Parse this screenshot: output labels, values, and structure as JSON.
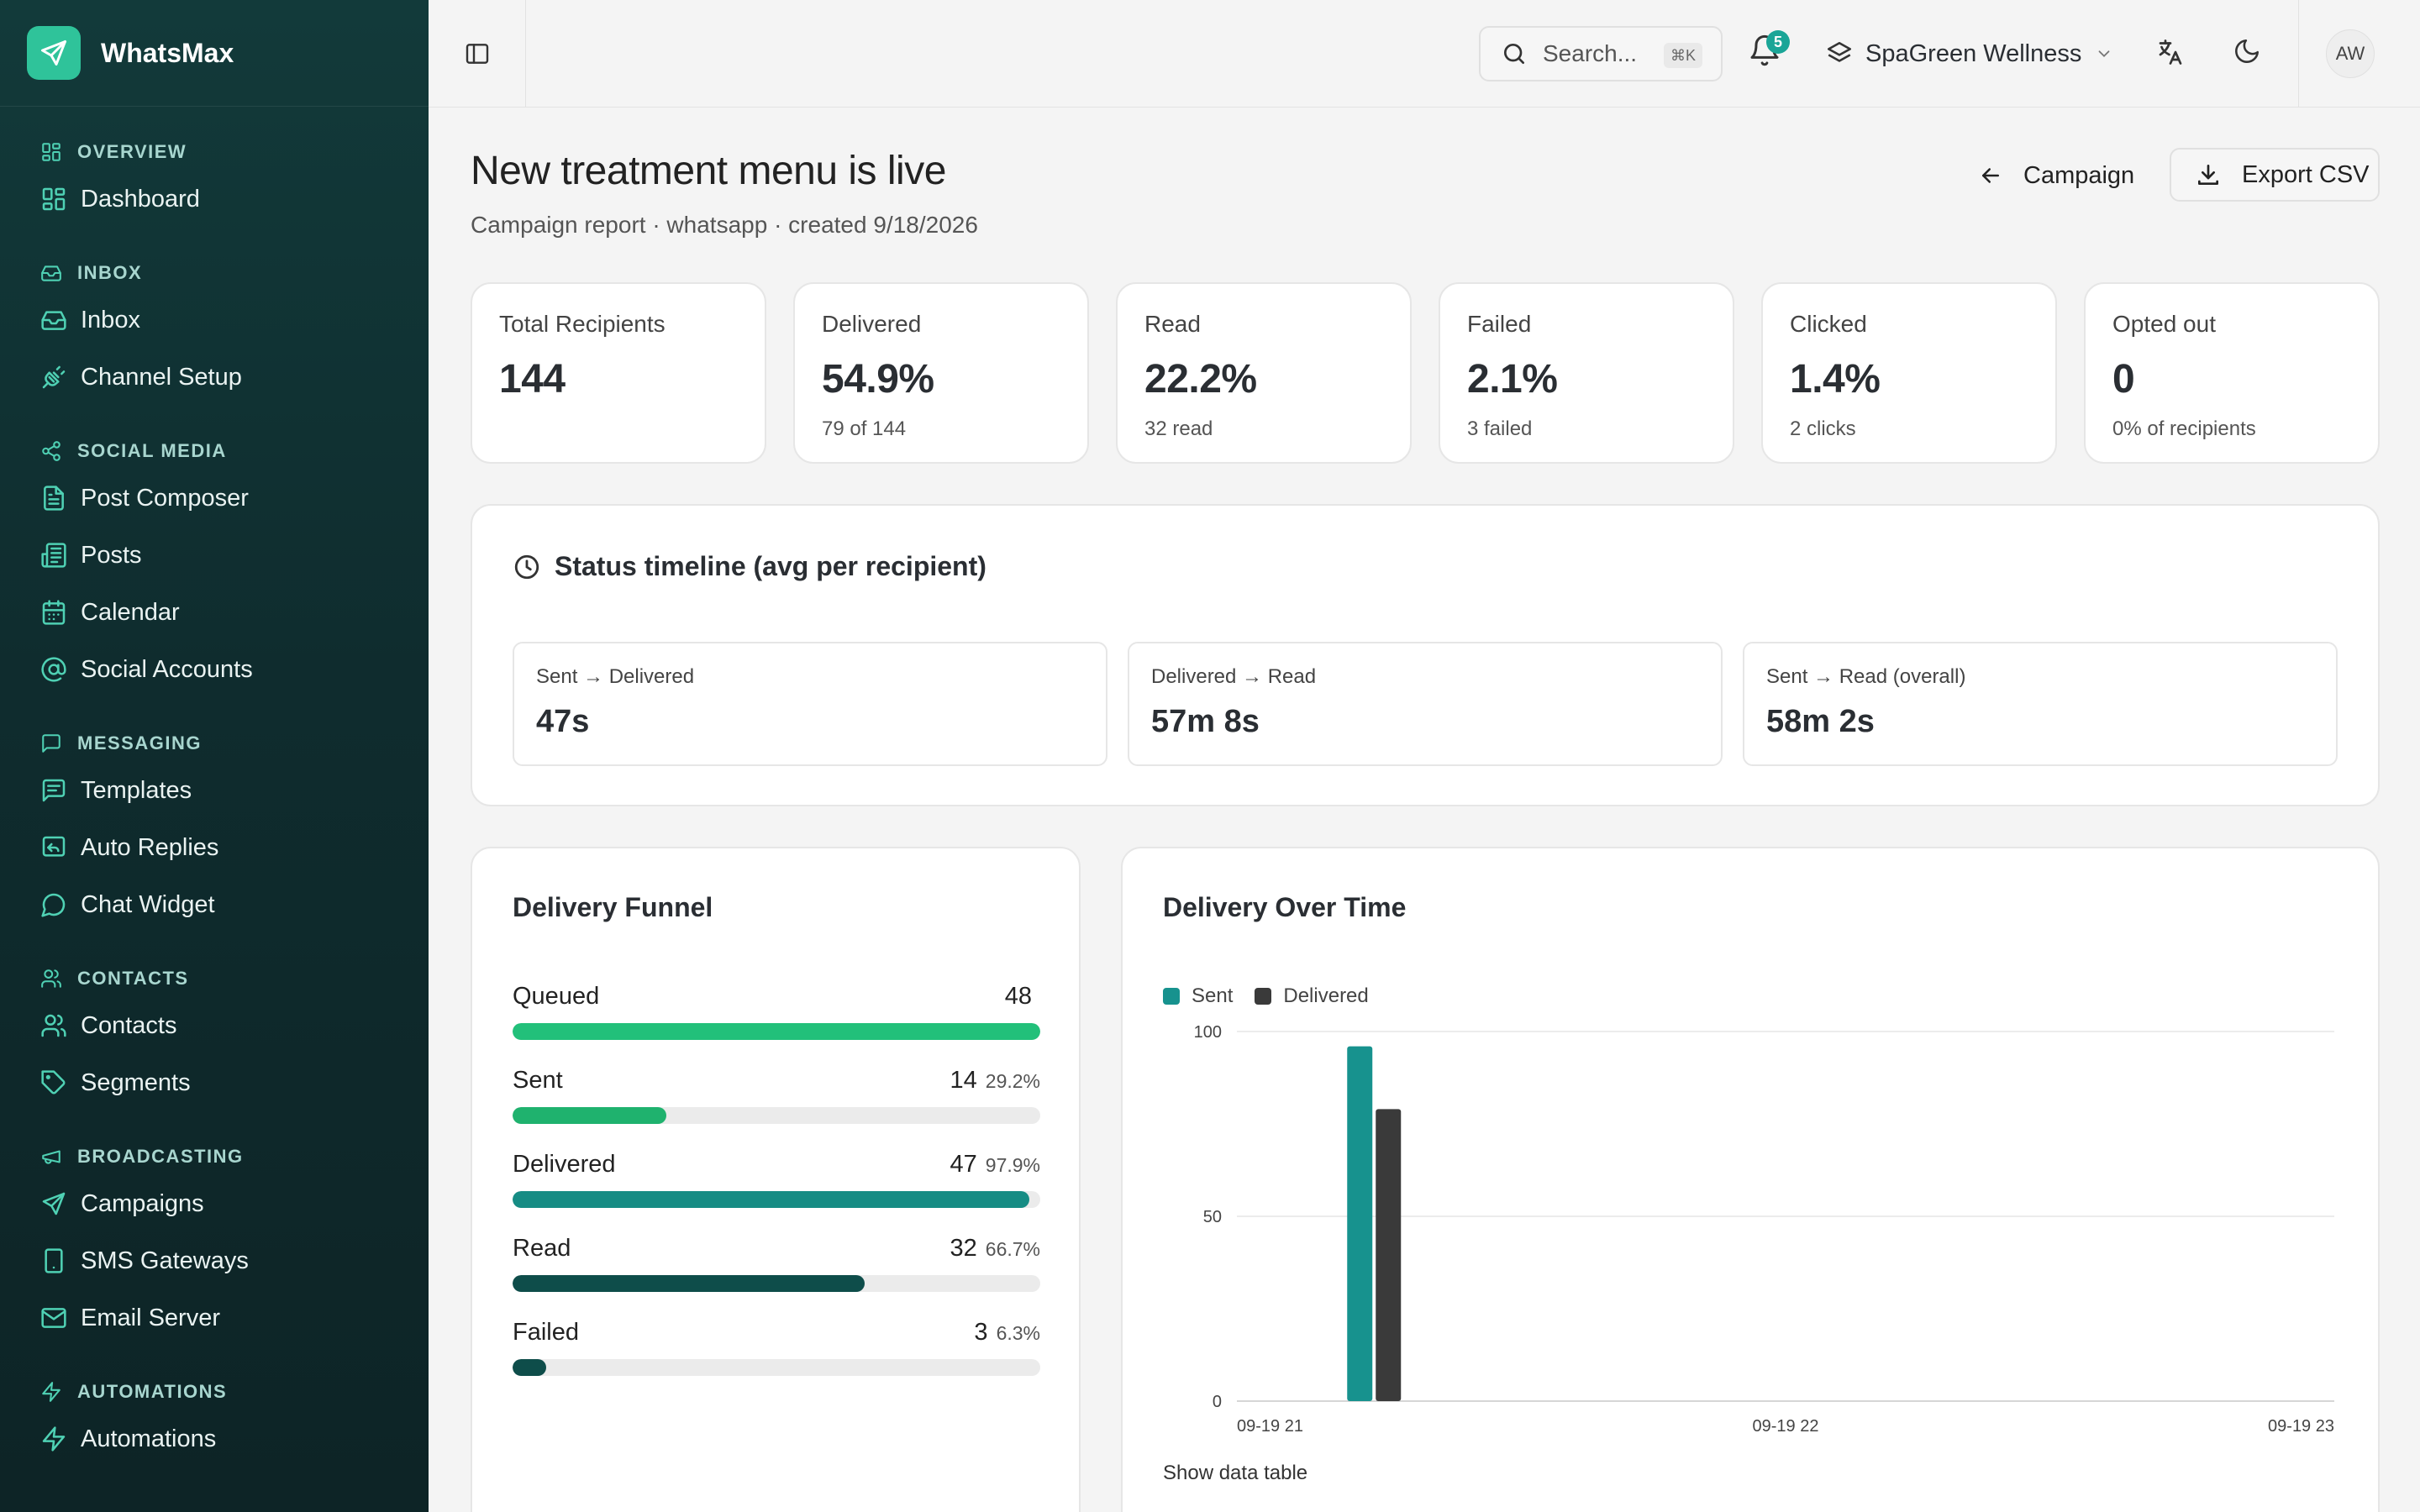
{
  "app": {
    "name": "WhatsMax"
  },
  "sidebar": {
    "sections": [
      {
        "label": "OVERVIEW",
        "icon": "layout-grid-icon",
        "items": [
          {
            "label": "Dashboard",
            "icon": "layout-grid-icon"
          }
        ]
      },
      {
        "label": "INBOX",
        "icon": "inbox-icon",
        "items": [
          {
            "label": "Inbox",
            "icon": "inbox-icon"
          },
          {
            "label": "Channel Setup",
            "icon": "plug-icon"
          }
        ]
      },
      {
        "label": "SOCIAL MEDIA",
        "icon": "share-icon",
        "items": [
          {
            "label": "Post Composer",
            "icon": "file-text-icon"
          },
          {
            "label": "Posts",
            "icon": "newspaper-icon"
          },
          {
            "label": "Calendar",
            "icon": "calendar-icon"
          },
          {
            "label": "Social Accounts",
            "icon": "at-sign-icon"
          }
        ]
      },
      {
        "label": "MESSAGING",
        "icon": "message-square-icon",
        "items": [
          {
            "label": "Templates",
            "icon": "message-lines-icon"
          },
          {
            "label": "Auto Replies",
            "icon": "reply-icon"
          },
          {
            "label": "Chat Widget",
            "icon": "chat-bubble-icon"
          }
        ]
      },
      {
        "label": "CONTACTS",
        "icon": "users-icon",
        "items": [
          {
            "label": "Contacts",
            "icon": "users-icon"
          },
          {
            "label": "Segments",
            "icon": "tag-icon"
          }
        ]
      },
      {
        "label": "BROADCASTING",
        "icon": "megaphone-icon",
        "items": [
          {
            "label": "Campaigns",
            "icon": "send-icon"
          },
          {
            "label": "SMS Gateways",
            "icon": "smartphone-icon"
          },
          {
            "label": "Email Server",
            "icon": "mail-icon"
          }
        ]
      },
      {
        "label": "AUTOMATIONS",
        "icon": "zap-icon",
        "items": [
          {
            "label": "Automations",
            "icon": "zap-icon"
          }
        ]
      }
    ]
  },
  "topbar": {
    "search_placeholder": "Search...",
    "search_shortcut": "⌘K",
    "notification_count": "5",
    "workspace_name": "SpaGreen Wellness",
    "avatar_initials": "AW"
  },
  "header": {
    "title": "New treatment menu is live",
    "subtitle": "Campaign report · whatsapp · created 9/18/2026",
    "back_label": "Campaign",
    "export_label": "Export CSV"
  },
  "stats": [
    {
      "label": "Total Recipients",
      "value": "144",
      "sub": ""
    },
    {
      "label": "Delivered",
      "value": "54.9%",
      "sub": "79 of 144"
    },
    {
      "label": "Read",
      "value": "22.2%",
      "sub": "32 read"
    },
    {
      "label": "Failed",
      "value": "2.1%",
      "sub": "3 failed"
    },
    {
      "label": "Clicked",
      "value": "1.4%",
      "sub": "2 clicks"
    },
    {
      "label": "Opted out",
      "value": "0",
      "sub": "0% of recipients"
    }
  ],
  "timeline": {
    "title": "Status timeline (avg per recipient)",
    "items": [
      {
        "label": "Sent → Delivered",
        "value": "47s"
      },
      {
        "label": "Delivered → Read",
        "value": "57m 8s"
      },
      {
        "label": "Sent → Read (overall)",
        "value": "58m 2s"
      }
    ]
  },
  "funnel": {
    "title": "Delivery Funnel",
    "rows": [
      {
        "label": "Queued",
        "count": "48",
        "pct": "",
        "fill": 1.0,
        "color": "#22c07a"
      },
      {
        "label": "Sent",
        "count": "14",
        "pct": "29.2%",
        "fill": 0.292,
        "color": "#1fb26e"
      },
      {
        "label": "Delivered",
        "count": "47",
        "pct": "97.9%",
        "fill": 0.979,
        "color": "#168c84"
      },
      {
        "label": "Read",
        "count": "32",
        "pct": "66.7%",
        "fill": 0.667,
        "color": "#0e4d4a"
      },
      {
        "label": "Failed",
        "count": "3",
        "pct": "6.3%",
        "fill": 0.063,
        "color": "#0e4d4a"
      }
    ]
  },
  "delivery_chart": {
    "title": "Delivery Over Time",
    "show_table_label": "Show data table"
  },
  "chart_data": {
    "type": "bar",
    "title": "Delivery Over Time",
    "x_ticks": [
      "09-19 21",
      "09-19 22",
      "09-19 23"
    ],
    "y_ticks": [
      0,
      50,
      100
    ],
    "ylim": [
      0,
      100
    ],
    "x_range_hours": [
      21,
      23
    ],
    "series": [
      {
        "name": "Sent",
        "color": "#17928e",
        "points": [
          {
            "x_hour": 21.25,
            "value": 96
          }
        ]
      },
      {
        "name": "Delivered",
        "color": "#3a3a3a",
        "points": [
          {
            "x_hour": 21.25,
            "value": 79
          }
        ]
      }
    ],
    "legend": "top-left",
    "grid": true
  }
}
